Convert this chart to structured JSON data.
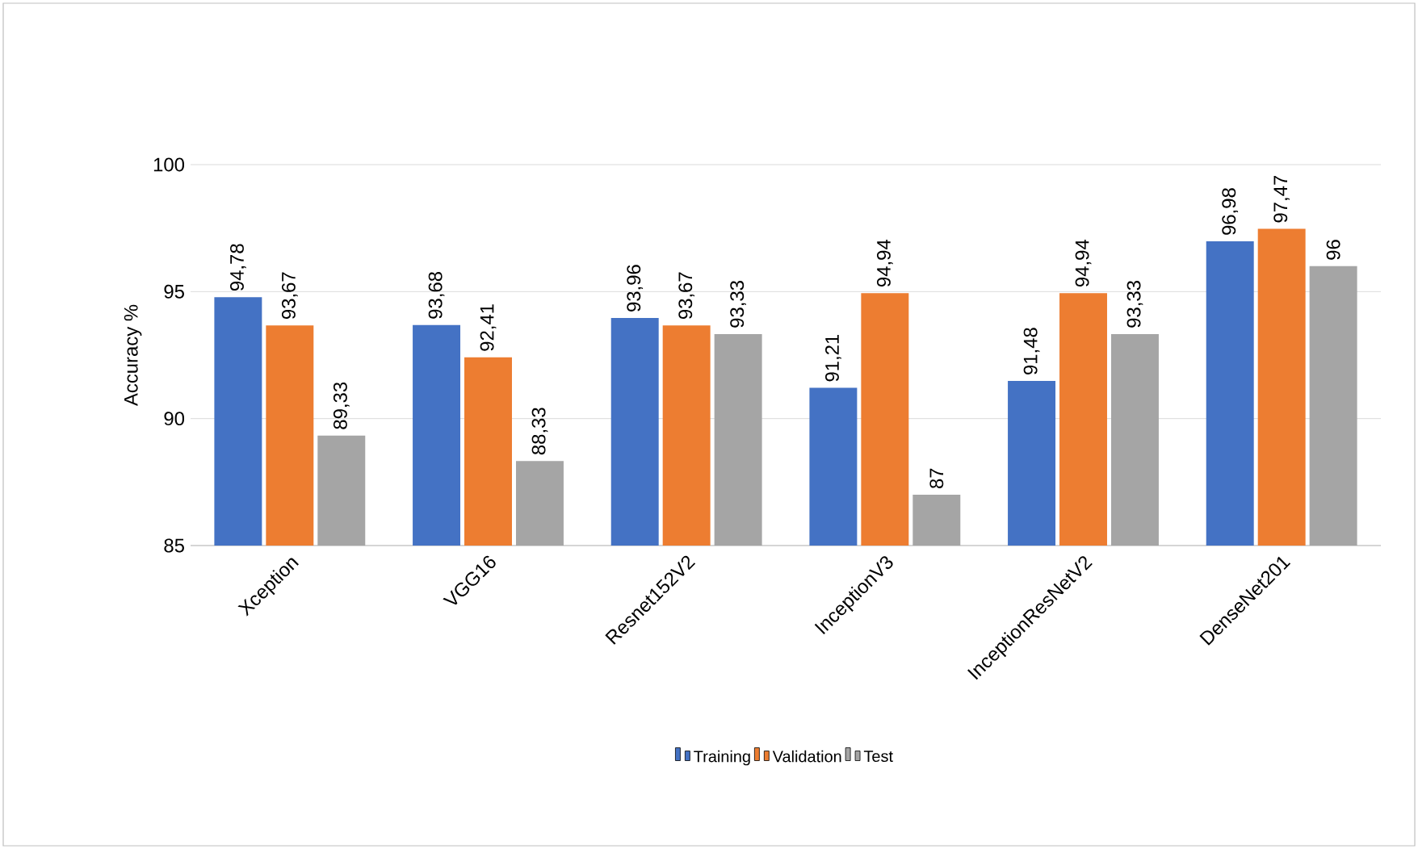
{
  "chart_data": {
    "type": "bar",
    "ylabel": "Accuracy %",
    "categories": [
      "Xception",
      "VGG16",
      "Resnet152V2",
      "InceptionV3",
      "InceptionResNetV2",
      "DenseNet201"
    ],
    "series": [
      {
        "name": "Training",
        "color": "#4472c4",
        "values": [
          94.78,
          93.68,
          93.96,
          91.21,
          91.48,
          96.98
        ],
        "value_labels": [
          "94,78",
          "93,68",
          "93,96",
          "91,21",
          "91,48",
          "96,98"
        ]
      },
      {
        "name": "Validation",
        "color": "#ed7d31",
        "values": [
          93.67,
          92.41,
          93.67,
          94.94,
          94.94,
          97.47
        ],
        "value_labels": [
          "93,67",
          "92,41",
          "93,67",
          "94,94",
          "94,94",
          "97,47"
        ]
      },
      {
        "name": "Test",
        "color": "#a5a5a5",
        "values": [
          89.33,
          88.33,
          93.33,
          87,
          93.33,
          96
        ],
        "value_labels": [
          "89,33",
          "88,33",
          "93,33",
          "87",
          "93,33",
          "96"
        ]
      }
    ],
    "ylim": [
      85,
      100
    ],
    "yticks": [
      85,
      90,
      95,
      100
    ],
    "grid": "y",
    "legend": "bottom"
  }
}
